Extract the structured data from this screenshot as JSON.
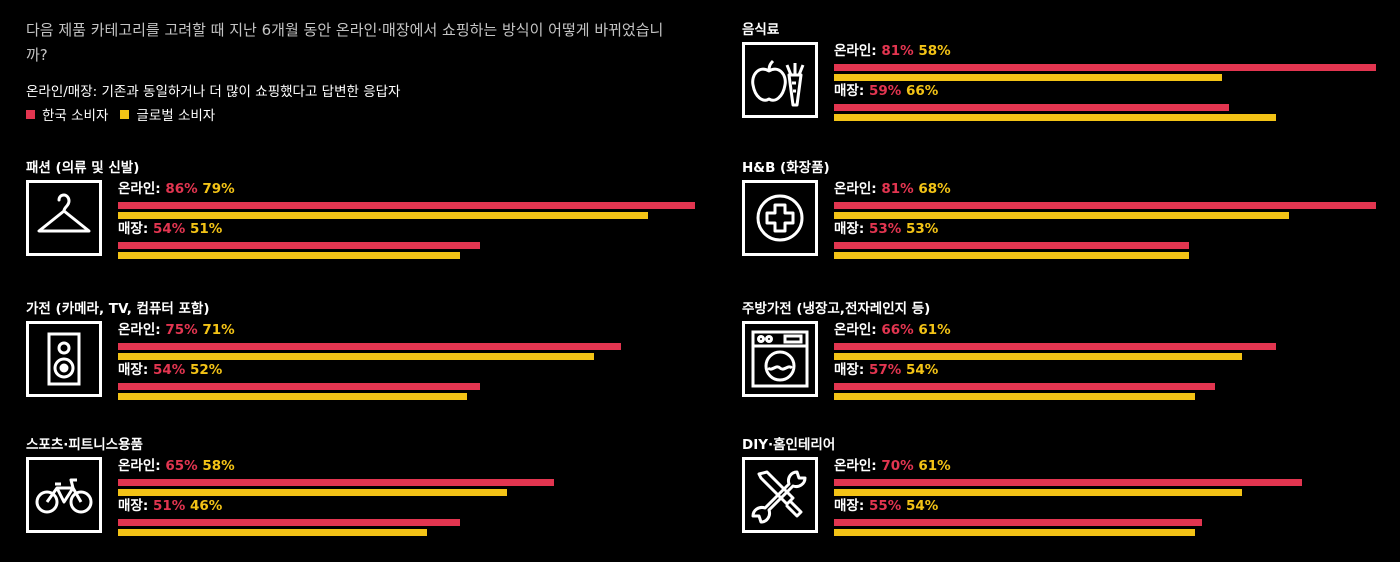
{
  "question": "다음 제품 카테고리를 고려할 때 지난 6개월 동안 온라인·매장에서 쇼핑하는 방식이 어떻게 바뀌었습니까?",
  "subtitle": "온라인/매장: 기존과 동일하거나 더 많이 쇼핑했다고 답변한 응답자",
  "legend": [
    {
      "label": "한국 소비자",
      "color": "#e23550"
    },
    {
      "label": "글로벌 소비자",
      "color": "#f3c316"
    }
  ],
  "labels": {
    "online": "온라인:",
    "store": "매장:"
  },
  "chart_data": {
    "type": "bar",
    "orientation": "horizontal",
    "series_names": [
      "한국 소비자",
      "글로벌 소비자"
    ],
    "xlim": [
      0,
      86
    ],
    "categories": [
      {
        "name": "패션 (의류 및 신발)",
        "icon": "hanger-icon",
        "online": {
          "kr": 86,
          "global": 79
        },
        "store": {
          "kr": 54,
          "global": 51
        }
      },
      {
        "name": "가전 (카메라, TV, 컴퓨터 포함)",
        "icon": "speaker-icon",
        "online": {
          "kr": 75,
          "global": 71
        },
        "store": {
          "kr": 54,
          "global": 52
        }
      },
      {
        "name": "스포츠·피트니스용품",
        "icon": "bicycle-icon",
        "online": {
          "kr": 65,
          "global": 58
        },
        "store": {
          "kr": 51,
          "global": 46
        }
      },
      {
        "name": "음식료",
        "icon": "apple-carrot-icon",
        "online": {
          "kr": 81,
          "global": 58
        },
        "store": {
          "kr": 59,
          "global": 66
        }
      },
      {
        "name": "H&B (화장품)",
        "icon": "medical-cross-icon",
        "online": {
          "kr": 81,
          "global": 68
        },
        "store": {
          "kr": 53,
          "global": 53
        }
      },
      {
        "name": "주방가전 (냉장고,전자레인지 등)",
        "icon": "washing-machine-icon",
        "online": {
          "kr": 66,
          "global": 61
        },
        "store": {
          "kr": 57,
          "global": 54
        }
      },
      {
        "name": "DIY·홈인테리어",
        "icon": "tools-icon",
        "online": {
          "kr": 70,
          "global": 61
        },
        "store": {
          "kr": 55,
          "global": 54
        }
      }
    ]
  }
}
